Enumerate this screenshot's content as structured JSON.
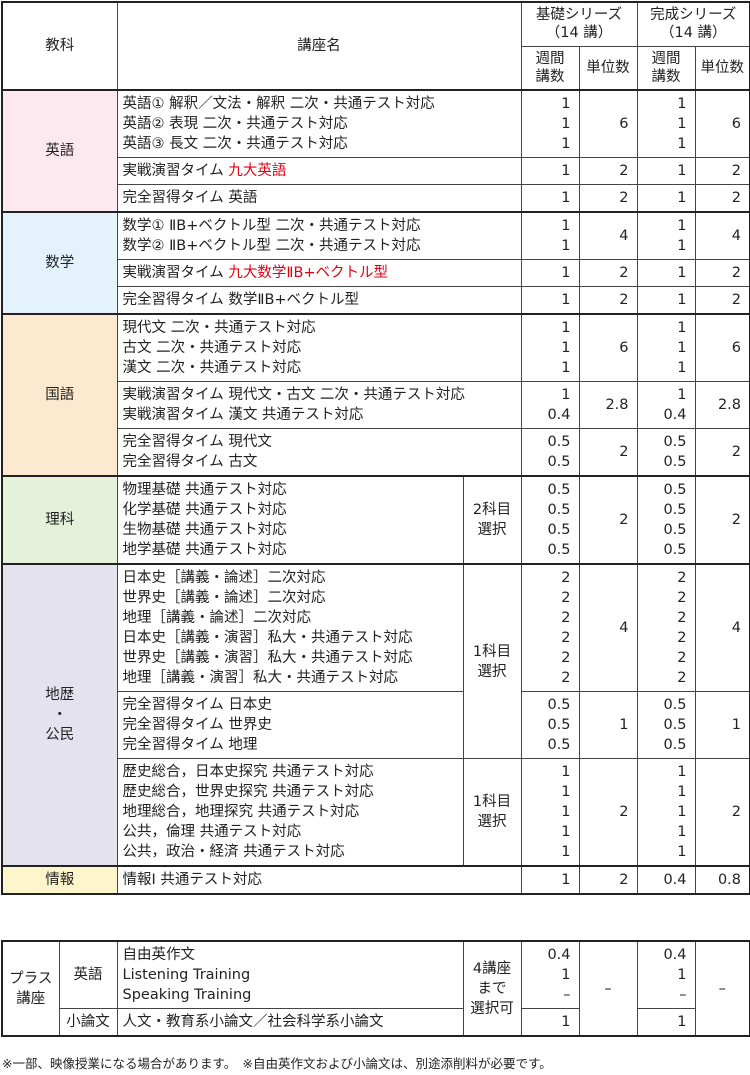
{
  "header": {
    "subject": "教科",
    "course": "講座名",
    "kiso_series": [
      "基礎シリーズ",
      "（14 講）"
    ],
    "kansei_series": [
      "完成シリーズ",
      "（14 講）"
    ],
    "weekly": [
      "週間",
      "講数"
    ],
    "units": "単位数"
  },
  "groups": [
    {
      "subject": [
        "英語"
      ],
      "color": "#fce8ef",
      "rows": [
        {
          "lines": [
            {
              "text": "英語① 解釈／文法・解釈 二次・共通テスト対応"
            },
            {
              "text": "英語② 表現 二次・共通テスト対応"
            },
            {
              "text": "英語③ 長文 二次・共通テスト対応"
            }
          ],
          "kiso_weekly": [
            "1",
            "1",
            "1"
          ],
          "kiso_units": "6",
          "kansei_weekly": [
            "1",
            "1",
            "1"
          ],
          "kansei_units": "6"
        },
        {
          "lines": [
            {
              "text": "実戦演習タイム ",
              "highlight": "九大英語"
            }
          ],
          "kiso_weekly": [
            "1"
          ],
          "kiso_units": "2",
          "kansei_weekly": [
            "1"
          ],
          "kansei_units": "2"
        },
        {
          "lines": [
            {
              "text": "完全習得タイム 英語"
            }
          ],
          "kiso_weekly": [
            "1"
          ],
          "kiso_units": "2",
          "kansei_weekly": [
            "1"
          ],
          "kansei_units": "2"
        }
      ]
    },
    {
      "subject": [
        "数学"
      ],
      "color": "#e3f2fb",
      "rows": [
        {
          "lines": [
            {
              "text": "数学① ⅡB+ベクトル型 二次・共通テスト対応"
            },
            {
              "text": "数学② ⅡB+ベクトル型 二次・共通テスト対応"
            }
          ],
          "kiso_weekly": [
            "1",
            "1"
          ],
          "kiso_units": "4",
          "kansei_weekly": [
            "1",
            "1"
          ],
          "kansei_units": "4"
        },
        {
          "lines": [
            {
              "text": "実戦演習タイム ",
              "highlight": "九大数学ⅡB+ベクトル型"
            }
          ],
          "kiso_weekly": [
            "1"
          ],
          "kiso_units": "2",
          "kansei_weekly": [
            "1"
          ],
          "kansei_units": "2"
        },
        {
          "lines": [
            {
              "text": "完全習得タイム 数学ⅡB+ベクトル型"
            }
          ],
          "kiso_weekly": [
            "1"
          ],
          "kiso_units": "2",
          "kansei_weekly": [
            "1"
          ],
          "kansei_units": "2"
        }
      ]
    },
    {
      "subject": [
        "国語"
      ],
      "color": "#fde9cf",
      "rows": [
        {
          "lines": [
            {
              "text": "現代文 二次・共通テスト対応"
            },
            {
              "text": "古文 二次・共通テスト対応"
            },
            {
              "text": "漢文 二次・共通テスト対応"
            }
          ],
          "kiso_weekly": [
            "1",
            "1",
            "1"
          ],
          "kiso_units": "6",
          "kansei_weekly": [
            "1",
            "1",
            "1"
          ],
          "kansei_units": "6"
        },
        {
          "lines": [
            {
              "text": "実戦演習タイム 現代文・古文 二次・共通テスト対応"
            },
            {
              "text": "実戦演習タイム 漢文 共通テスト対応"
            }
          ],
          "kiso_weekly": [
            "1",
            "0.4"
          ],
          "kiso_units": "2.8",
          "kansei_weekly": [
            "1",
            "0.4"
          ],
          "kansei_units": "2.8"
        },
        {
          "lines": [
            {
              "text": "完全習得タイム 現代文"
            },
            {
              "text": "完全習得タイム 古文"
            }
          ],
          "kiso_weekly": [
            "0.5",
            "0.5"
          ],
          "kiso_units": "2",
          "kansei_weekly": [
            "0.5",
            "0.5"
          ],
          "kansei_units": "2"
        }
      ]
    },
    {
      "subject": [
        "理科"
      ],
      "color": "#e6f1dc",
      "rows": [
        {
          "lines": [
            {
              "text": "物理基礎 共通テスト対応"
            },
            {
              "text": "化学基礎 共通テスト対応"
            },
            {
              "text": "生物基礎 共通テスト対応"
            },
            {
              "text": "地学基礎 共通テスト対応"
            }
          ],
          "note": [
            "2科目",
            "選択"
          ],
          "kiso_weekly": [
            "0.5",
            "0.5",
            "0.5",
            "0.5"
          ],
          "kiso_units": "2",
          "kansei_weekly": [
            "0.5",
            "0.5",
            "0.5",
            "0.5"
          ],
          "kansei_units": "2"
        }
      ]
    },
    {
      "subject": [
        "地歴",
        "・",
        "公民"
      ],
      "color": "#e4e2ef",
      "rows": [
        {
          "lines": [
            {
              "text": "日本史［講義・論述］二次対応"
            },
            {
              "text": "世界史［講義・論述］二次対応"
            },
            {
              "text": "地理［講義・論述］二次対応"
            },
            {
              "text": "日本史［講義・演習］私大・共通テスト対応"
            },
            {
              "text": "世界史［講義・演習］私大・共通テスト対応"
            },
            {
              "text": "地理［講義・演習］私大・共通テスト対応"
            }
          ],
          "note": [
            "1科目",
            "選択"
          ],
          "kiso_weekly": [
            "2",
            "2",
            "2",
            "2",
            "2",
            "2"
          ],
          "kiso_units": "4",
          "kansei_weekly": [
            "2",
            "2",
            "2",
            "2",
            "2",
            "2"
          ],
          "kansei_units": "4"
        },
        {
          "lines": [
            {
              "text": "完全習得タイム 日本史"
            },
            {
              "text": "完全習得タイム 世界史"
            },
            {
              "text": "完全習得タイム 地理"
            }
          ],
          "kiso_weekly": [
            "0.5",
            "0.5",
            "0.5"
          ],
          "kiso_units": "1",
          "kansei_weekly": [
            "0.5",
            "0.5",
            "0.5"
          ],
          "kansei_units": "1"
        },
        {
          "lines": [
            {
              "text": "歴史総合，日本史探究 共通テスト対応"
            },
            {
              "text": "歴史総合，世界史探究 共通テスト対応"
            },
            {
              "text": "地理総合，地理探究 共通テスト対応"
            },
            {
              "text": "公共，倫理 共通テスト対応"
            },
            {
              "text": "公共，政治・経済 共通テスト対応"
            }
          ],
          "note": [
            "1科目",
            "選択"
          ],
          "kiso_weekly": [
            "1",
            "1",
            "1",
            "1",
            "1"
          ],
          "kiso_units": "2",
          "kansei_weekly": [
            "1",
            "1",
            "1",
            "1",
            "1"
          ],
          "kansei_units": "2"
        }
      ]
    },
    {
      "subject": [
        "情報"
      ],
      "color": "#fdf6cc",
      "rows": [
        {
          "lines": [
            {
              "text": "情報Ⅰ 共通テスト対応"
            }
          ],
          "kiso_weekly": [
            "1"
          ],
          "kiso_units": "2",
          "kansei_weekly": [
            "0.4"
          ],
          "kansei_units": "0.8"
        }
      ]
    }
  ],
  "plus": {
    "label": [
      "プラス",
      "講座"
    ],
    "note": [
      "4講座",
      "まで",
      "選択可"
    ],
    "kiso_units": "–",
    "kansei_units": "–",
    "rows": [
      {
        "subject": "英語",
        "lines": [
          "自由英作文",
          "Listening Training",
          "Speaking Training"
        ],
        "kiso_weekly": [
          "0.4",
          "1",
          "–"
        ],
        "kansei_weekly": [
          "0.4",
          "1",
          "–"
        ]
      },
      {
        "subject": "小論文",
        "lines": [
          "人文・教育系小論文／社会科学系小論文"
        ],
        "kiso_weekly": [
          "1"
        ],
        "kansei_weekly": [
          "1"
        ]
      }
    ]
  },
  "footer": "※一部、映像授業になる場合があります。　※自由英作文および小論文は、別途添削料が必要です。"
}
